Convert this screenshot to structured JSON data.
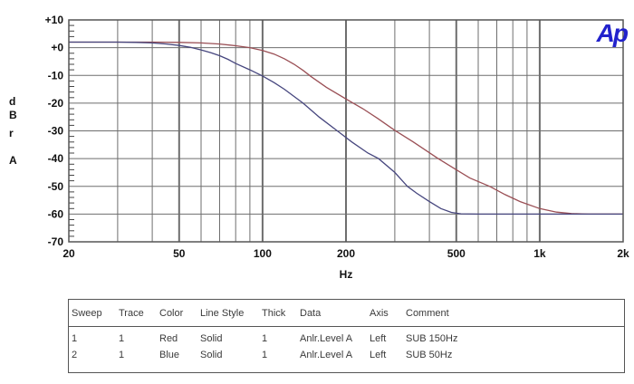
{
  "header": {
    "logo_text": "Ap",
    "logo_color": "#2222cc"
  },
  "chart_data": {
    "type": "line",
    "title": "",
    "xlabel": "Hz",
    "ylabel": "dBr A",
    "ylabel_chars": [
      "d",
      "B",
      "r",
      "A"
    ],
    "x_scale": "log",
    "grid": "on",
    "xlim": [
      20,
      2000
    ],
    "ylim": [
      -70,
      10
    ],
    "x_ticks": [
      {
        "v": 20,
        "label": "20"
      },
      {
        "v": 50,
        "label": "50"
      },
      {
        "v": 100,
        "label": "100"
      },
      {
        "v": 200,
        "label": "200"
      },
      {
        "v": 500,
        "label": "500"
      },
      {
        "v": 1000,
        "label": "1k"
      },
      {
        "v": 2000,
        "label": "2k"
      }
    ],
    "y_ticks": [
      {
        "v": 10,
        "label": "+10"
      },
      {
        "v": 0,
        "label": "+0"
      },
      {
        "v": -10,
        "label": "-10"
      },
      {
        "v": -20,
        "label": "-20"
      },
      {
        "v": -30,
        "label": "-30"
      },
      {
        "v": -40,
        "label": "-40"
      },
      {
        "v": -50,
        "label": "-50"
      },
      {
        "v": -60,
        "label": "-60"
      },
      {
        "v": -70,
        "label": "-70"
      }
    ],
    "grid_color": "#6e6e6e",
    "axis_text_color": "#111111",
    "series": [
      {
        "name": "SUB 150Hz",
        "color": "#9a4f55",
        "points": [
          [
            20,
            2
          ],
          [
            30,
            2
          ],
          [
            40,
            2
          ],
          [
            50,
            1.9
          ],
          [
            60,
            1.7
          ],
          [
            70,
            1.3
          ],
          [
            80,
            0.7
          ],
          [
            90,
            0
          ],
          [
            100,
            -1
          ],
          [
            110,
            -2.3
          ],
          [
            120,
            -4
          ],
          [
            130,
            -6
          ],
          [
            140,
            -8.2
          ],
          [
            150,
            -10.5
          ],
          [
            170,
            -14.3
          ],
          [
            200,
            -18.5
          ],
          [
            230,
            -22
          ],
          [
            260,
            -25.5
          ],
          [
            300,
            -29.8
          ],
          [
            350,
            -34
          ],
          [
            430,
            -40
          ],
          [
            500,
            -44
          ],
          [
            560,
            -47
          ],
          [
            660,
            -50
          ],
          [
            750,
            -53
          ],
          [
            850,
            -55.5
          ],
          [
            1000,
            -58
          ],
          [
            1150,
            -59.3
          ],
          [
            1300,
            -59.8
          ],
          [
            1500,
            -60
          ],
          [
            2000,
            -60
          ]
        ]
      },
      {
        "name": "SUB 50Hz",
        "color": "#46467e",
        "points": [
          [
            20,
            2
          ],
          [
            30,
            2
          ],
          [
            35,
            1.9
          ],
          [
            40,
            1.7
          ],
          [
            45,
            1.3
          ],
          [
            50,
            0.8
          ],
          [
            55,
            0.1
          ],
          [
            60,
            -0.8
          ],
          [
            65,
            -1.8
          ],
          [
            70,
            -2.9
          ],
          [
            75,
            -4.2
          ],
          [
            80,
            -5.7
          ],
          [
            90,
            -8
          ],
          [
            100,
            -10.2
          ],
          [
            110,
            -12.6
          ],
          [
            120,
            -15
          ],
          [
            140,
            -20
          ],
          [
            160,
            -25
          ],
          [
            186,
            -30
          ],
          [
            210,
            -34
          ],
          [
            240,
            -38
          ],
          [
            262,
            -40
          ],
          [
            300,
            -45
          ],
          [
            333,
            -50
          ],
          [
            360,
            -52.5
          ],
          [
            400,
            -55.5
          ],
          [
            440,
            -58
          ],
          [
            480,
            -59.4
          ],
          [
            520,
            -59.9
          ],
          [
            600,
            -60
          ],
          [
            1000,
            -60
          ],
          [
            2000,
            -60
          ]
        ]
      }
    ]
  },
  "sweep_table": {
    "headers": [
      "Sweep",
      "Trace",
      "Color",
      "Line Style",
      "Thick",
      "Data",
      "Axis",
      "Comment"
    ],
    "rows": [
      [
        "1",
        "1",
        "Red",
        "Solid",
        "1",
        "Anlr.Level A",
        "Left",
        "SUB 150Hz"
      ],
      [
        "2",
        "1",
        "Blue",
        "Solid",
        "1",
        "Anlr.Level A",
        "Left",
        "SUB 50Hz"
      ]
    ]
  }
}
